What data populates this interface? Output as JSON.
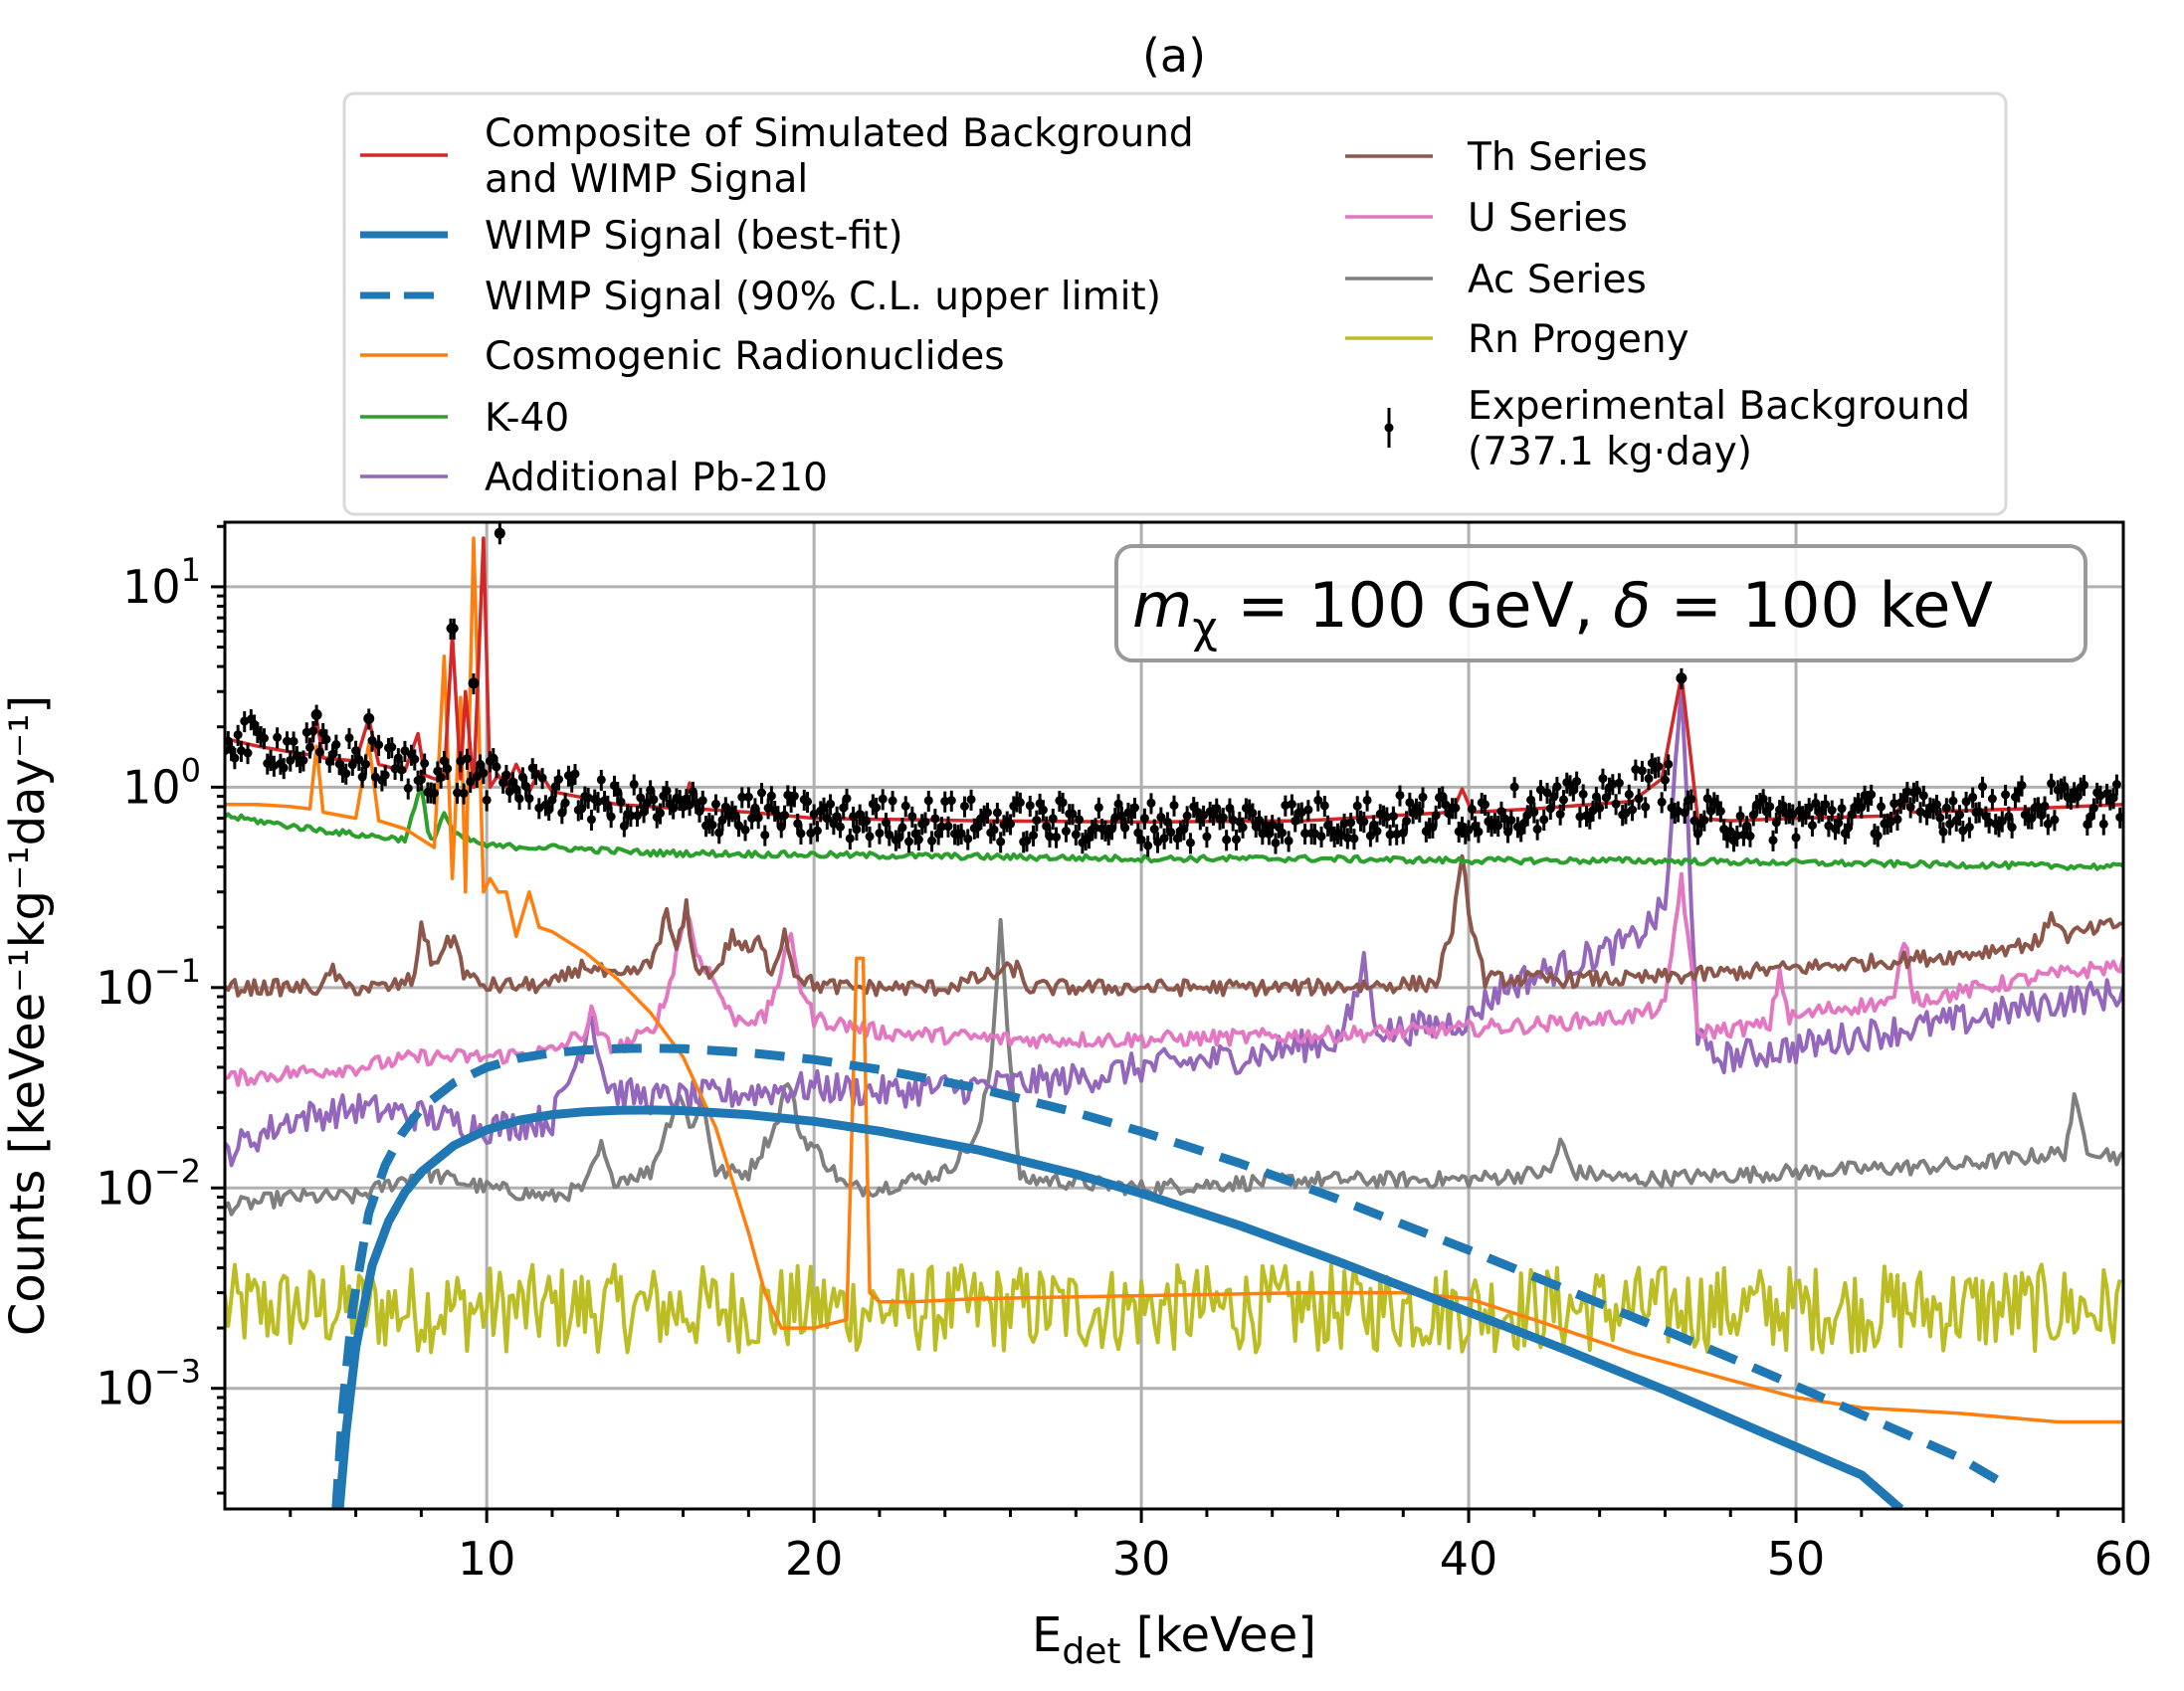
{
  "chart_data": {
    "type": "line",
    "title": "(a)",
    "xlabel": "E_det [keVee]",
    "xlabel_main": "E",
    "xlabel_sub": "det",
    "xlabel_unit": " [keVee]",
    "ylabel": "Counts [keVee⁻¹kg⁻¹day⁻¹]",
    "xscale": "linear",
    "yscale": "log",
    "xlim": [
      2,
      60
    ],
    "ylim": [
      0.00025,
      21
    ],
    "grid": true,
    "x_ticks": [
      10,
      20,
      30,
      40,
      50,
      60
    ],
    "x_tick_labels": [
      "10",
      "20",
      "30",
      "40",
      "50",
      "60"
    ],
    "y_ticks": [
      0.001,
      0.01,
      0.1,
      1,
      10
    ],
    "y_tick_labels": [
      {
        "base": "10",
        "exp": "−3"
      },
      {
        "base": "10",
        "exp": "−2"
      },
      {
        "base": "10",
        "exp": "−1"
      },
      {
        "base": "10",
        "exp": "0"
      },
      {
        "base": "10",
        "exp": "1"
      }
    ],
    "annotation": {
      "m_symbol": "m",
      "m_sub": "χ",
      "text_mid": " = 100 GeV, ",
      "delta_symbol": "δ",
      "text_end": " = 100 keV"
    },
    "legend": {
      "placement": "top",
      "columns": 2,
      "entries": [
        {
          "key": "composite",
          "label_lines": [
            "Composite of Simulated Background",
            "and WIMP Signal"
          ],
          "color": "#d62728",
          "style": "solid"
        },
        {
          "key": "wimp_best",
          "label_lines": [
            "WIMP Signal (best-fit)"
          ],
          "color": "#1f77b4",
          "style": "solid-thick"
        },
        {
          "key": "wimp_ul",
          "label_lines": [
            "WIMP Signal (90% C.L. upper limit)"
          ],
          "color": "#1f77b4",
          "style": "dashed-thick"
        },
        {
          "key": "cosmo",
          "label_lines": [
            "Cosmogenic Radionuclides"
          ],
          "color": "#ff7f0e",
          "style": "solid"
        },
        {
          "key": "k40",
          "label_lines": [
            "K-40"
          ],
          "color": "#2ca02c",
          "style": "solid"
        },
        {
          "key": "pb210",
          "label_lines": [
            "Additional Pb-210"
          ],
          "color": "#9467bd",
          "style": "solid"
        },
        {
          "key": "th",
          "label_lines": [
            "Th Series"
          ],
          "color": "#8c564b",
          "style": "solid"
        },
        {
          "key": "u",
          "label_lines": [
            "U Series"
          ],
          "color": "#e377c2",
          "style": "solid"
        },
        {
          "key": "ac",
          "label_lines": [
            "Ac Series"
          ],
          "color": "#7f7f7f",
          "style": "solid"
        },
        {
          "key": "rn",
          "label_lines": [
            "Rn Progeny"
          ],
          "color": "#bcbd22",
          "style": "solid"
        },
        {
          "key": "exp",
          "label_lines": [
            "Experimental Background",
            "(737.1 kg·day)"
          ],
          "color": "#000000",
          "style": "errorbar"
        }
      ]
    },
    "series": [
      {
        "key": "k40",
        "name": "K-40",
        "color": "#2ca02c",
        "x": [
          2,
          4,
          6,
          7.5,
          8.0,
          8.2,
          8.4,
          8.7,
          9.0,
          10,
          12,
          15,
          20,
          25,
          30,
          35,
          40,
          45,
          50,
          55,
          60
        ],
        "y": [
          0.72,
          0.64,
          0.58,
          0.55,
          1.0,
          0.6,
          0.55,
          0.75,
          0.58,
          0.51,
          0.5,
          0.47,
          0.46,
          0.45,
          0.44,
          0.44,
          0.43,
          0.43,
          0.42,
          0.41,
          0.4
        ]
      },
      {
        "key": "cosmo",
        "name": "Cosmogenic Radionuclides",
        "color": "#ff7f0e",
        "x": [
          2,
          3,
          4,
          4.6,
          4.8,
          5.0,
          6.0,
          6.4,
          6.7,
          7.5,
          8.0,
          8.4,
          8.7,
          8.95,
          9.2,
          9.35,
          9.6,
          9.9,
          10.1,
          10.35,
          10.6,
          10.9,
          11.3,
          11.6,
          12,
          13,
          14,
          15,
          16,
          17,
          18,
          18.5,
          19,
          20,
          21,
          21.3,
          21.5,
          21.7,
          22,
          23,
          25,
          30,
          35,
          38,
          40,
          42,
          45,
          48,
          50,
          52,
          55,
          58,
          60
        ],
        "y": [
          0.82,
          0.82,
          0.8,
          0.78,
          1.6,
          0.75,
          0.7,
          1.65,
          0.68,
          0.62,
          0.55,
          0.5,
          4.5,
          0.35,
          2.8,
          0.3,
          17.5,
          0.3,
          0.35,
          0.3,
          0.3,
          0.18,
          0.3,
          0.2,
          0.19,
          0.15,
          0.11,
          0.075,
          0.045,
          0.02,
          0.006,
          0.003,
          0.002,
          0.002,
          0.0022,
          0.14,
          0.14,
          0.003,
          0.0027,
          0.0027,
          0.0028,
          0.0029,
          0.003,
          0.003,
          0.0028,
          0.0022,
          0.0015,
          0.0011,
          0.0009,
          0.0008,
          0.00075,
          0.00068,
          0.00068
        ]
      },
      {
        "key": "th",
        "name": "Th Series",
        "color": "#8c564b",
        "x": [
          2,
          4,
          5,
          5.3,
          5.6,
          7,
          7.8,
          8.0,
          8.3,
          9.0,
          9.3,
          9.7,
          10,
          12,
          13,
          14,
          15,
          15.5,
          15.8,
          16.1,
          16.3,
          16.6,
          17,
          17.5,
          18,
          18.3,
          18.7,
          19.1,
          19.4,
          20,
          21,
          24,
          26.2,
          26.5,
          27,
          30,
          35,
          39,
          39.5,
          39.8,
          40.1,
          40.5,
          45,
          50,
          55,
          57.5,
          57.8,
          58.2,
          60
        ],
        "y": [
          0.1,
          0.1,
          0.1,
          0.125,
          0.1,
          0.1,
          0.11,
          0.22,
          0.13,
          0.18,
          0.12,
          0.105,
          0.102,
          0.103,
          0.13,
          0.11,
          0.13,
          0.23,
          0.15,
          0.25,
          0.14,
          0.12,
          0.12,
          0.18,
          0.15,
          0.17,
          0.12,
          0.19,
          0.12,
          0.103,
          0.1,
          0.1,
          0.125,
          0.1,
          0.1,
          0.1,
          0.1,
          0.105,
          0.2,
          0.42,
          0.2,
          0.11,
          0.11,
          0.125,
          0.145,
          0.17,
          0.24,
          0.18,
          0.21
        ]
      },
      {
        "key": "u",
        "name": "U Series",
        "color": "#e377c2",
        "x": [
          2,
          6,
          8,
          10,
          12,
          13,
          13.2,
          13.5,
          14,
          15,
          15.5,
          15.8,
          16.1,
          16.4,
          16.8,
          17.5,
          18.5,
          19.0,
          19.3,
          19.6,
          20,
          22,
          26,
          30,
          34,
          38,
          42,
          45,
          46.0,
          46.5,
          47.0,
          48,
          49.2,
          49.5,
          49.8,
          51,
          53,
          53.3,
          53.6,
          54,
          57,
          60
        ],
        "y": [
          0.035,
          0.04,
          0.045,
          0.045,
          0.048,
          0.06,
          0.075,
          0.055,
          0.05,
          0.06,
          0.09,
          0.15,
          0.25,
          0.15,
          0.12,
          0.07,
          0.07,
          0.12,
          0.18,
          0.1,
          0.07,
          0.06,
          0.055,
          0.055,
          0.057,
          0.06,
          0.065,
          0.072,
          0.08,
          0.36,
          0.06,
          0.062,
          0.065,
          0.12,
          0.07,
          0.078,
          0.085,
          0.18,
          0.09,
          0.088,
          0.11,
          0.13
        ]
      },
      {
        "key": "pb210",
        "name": "Additional Pb-210",
        "color": "#9467bd",
        "x": [
          2,
          4,
          6,
          8,
          10,
          12,
          12.8,
          13.2,
          13.6,
          14,
          15,
          16,
          18,
          20,
          22,
          25,
          28,
          30,
          33,
          36,
          36.5,
          36.8,
          37.1,
          37.5,
          39,
          40,
          41,
          43,
          45,
          46.0,
          46.5,
          47.0,
          47.3,
          48,
          50,
          52,
          55,
          58,
          60
        ],
        "y": [
          0.015,
          0.022,
          0.025,
          0.023,
          0.02,
          0.022,
          0.045,
          0.075,
          0.035,
          0.03,
          0.028,
          0.028,
          0.03,
          0.032,
          0.03,
          0.032,
          0.035,
          0.04,
          0.045,
          0.055,
          0.08,
          0.14,
          0.07,
          0.06,
          0.065,
          0.07,
          0.1,
          0.13,
          0.17,
          0.25,
          3.0,
          0.06,
          0.045,
          0.045,
          0.05,
          0.058,
          0.068,
          0.085,
          0.095
        ]
      },
      {
        "key": "ac",
        "name": "Ac Series",
        "color": "#7f7f7f",
        "x": [
          2,
          4,
          6,
          8,
          10,
          12,
          13,
          13.5,
          13.8,
          15,
          15.5,
          15.9,
          16.2,
          16.6,
          17,
          18,
          18.8,
          19.2,
          19.6,
          20,
          21,
          22,
          23,
          24,
          25,
          25.4,
          25.7,
          26.0,
          26.3,
          27,
          30,
          35,
          40,
          42.5,
          42.8,
          43.2,
          45,
          50,
          55,
          58.2,
          58.5,
          58.9,
          60
        ],
        "y": [
          0.008,
          0.009,
          0.009,
          0.012,
          0.01,
          0.009,
          0.01,
          0.016,
          0.011,
          0.012,
          0.02,
          0.03,
          0.02,
          0.027,
          0.012,
          0.012,
          0.02,
          0.035,
          0.018,
          0.016,
          0.01,
          0.01,
          0.011,
          0.012,
          0.018,
          0.04,
          0.22,
          0.04,
          0.011,
          0.011,
          0.01,
          0.011,
          0.011,
          0.012,
          0.017,
          0.012,
          0.011,
          0.012,
          0.013,
          0.015,
          0.027,
          0.016,
          0.014
        ]
      },
      {
        "key": "rn",
        "name": "Rn Progeny",
        "color": "#bcbd22",
        "baseline": 0.0025,
        "noise_decades": 0.22,
        "x_range": [
          2,
          60
        ]
      },
      {
        "key": "wimp_best",
        "name": "WIMP Signal (best-fit)",
        "color": "#1f77b4",
        "x": [
          5.5,
          5.7,
          6.0,
          6.5,
          7.0,
          7.5,
          8.0,
          9.0,
          10,
          11,
          12,
          13,
          14,
          15,
          16,
          18,
          20,
          22,
          25,
          28,
          30,
          33,
          36,
          40,
          43,
          46,
          49,
          52,
          53.2
        ],
        "y": [
          0.00025,
          0.0006,
          0.0016,
          0.0041,
          0.0068,
          0.0095,
          0.012,
          0.0163,
          0.0195,
          0.0218,
          0.0232,
          0.024,
          0.0244,
          0.0245,
          0.0243,
          0.0232,
          0.0215,
          0.0192,
          0.0155,
          0.0117,
          0.0094,
          0.0065,
          0.0043,
          0.0024,
          0.00155,
          0.00098,
          0.0006,
          0.00037,
          0.00025
        ]
      },
      {
        "key": "wimp_ul",
        "name": "WIMP Signal (90% C.L. upper limit)",
        "color": "#1f77b4",
        "x": [
          5.4,
          5.6,
          5.9,
          6.4,
          6.9,
          7.4,
          8.0,
          9.0,
          10,
          11,
          12,
          13,
          14,
          15,
          16,
          18,
          20,
          22,
          25,
          28,
          30,
          33,
          36,
          40,
          43,
          46,
          49,
          52,
          55,
          56.4
        ],
        "y": [
          0.00025,
          0.0008,
          0.0025,
          0.0075,
          0.013,
          0.0185,
          0.025,
          0.0335,
          0.04,
          0.0445,
          0.0472,
          0.0488,
          0.0496,
          0.0498,
          0.0495,
          0.0473,
          0.0437,
          0.039,
          0.0315,
          0.0238,
          0.0191,
          0.0133,
          0.0088,
          0.0049,
          0.0031,
          0.00195,
          0.00121,
          0.00074,
          0.00045,
          0.00033
        ]
      },
      {
        "key": "composite",
        "name": "Composite of Simulated Background and WIMP Signal",
        "color": "#d62728",
        "x": [
          2,
          3,
          4,
          4.6,
          4.8,
          5.0,
          6.0,
          6.4,
          6.7,
          7.5,
          7.9,
          8.1,
          8.4,
          8.7,
          8.95,
          9.2,
          9.35,
          9.6,
          9.9,
          10.1,
          10.35,
          10.6,
          10.9,
          11.3,
          11.6,
          12,
          14,
          16,
          16.2,
          16.4,
          18,
          20,
          25,
          30,
          35,
          39.5,
          39.8,
          40.1,
          42,
          45,
          45.9,
          46.5,
          47.0,
          48,
          50,
          53,
          53.3,
          53.6,
          57,
          60
        ],
        "y": [
          1.75,
          1.6,
          1.5,
          1.45,
          2.2,
          1.4,
          1.35,
          2.2,
          1.3,
          1.2,
          1.85,
          1.15,
          1.1,
          1.1,
          5.8,
          1.1,
          3.0,
          1.0,
          17.5,
          1.0,
          1.15,
          1.0,
          1.3,
          0.95,
          1.2,
          0.95,
          0.82,
          0.78,
          1.05,
          0.78,
          0.75,
          0.7,
          0.68,
          0.67,
          0.68,
          0.75,
          0.98,
          0.75,
          0.78,
          0.85,
          1.1,
          3.6,
          0.7,
          0.68,
          0.7,
          0.72,
          0.85,
          0.75,
          0.78,
          0.82
        ]
      },
      {
        "key": "exp",
        "name": "Experimental Background (737.1 kg·day)",
        "color": "#000000",
        "type": "errorbar",
        "peaks": [
          {
            "x": 4.8,
            "y": 2.3
          },
          {
            "x": 6.4,
            "y": 2.2
          },
          {
            "x": 8.95,
            "y": 6.2
          },
          {
            "x": 9.6,
            "y": 3.3
          },
          {
            "x": 10.4,
            "y": 18.5
          },
          {
            "x": 46.5,
            "y": 3.5
          }
        ],
        "baseline_x": [
          2,
          4,
          6,
          8,
          10,
          12,
          14,
          16,
          20,
          25,
          30,
          35,
          40,
          44,
          46,
          47,
          50,
          55,
          60
        ],
        "baseline_y": [
          1.8,
          1.55,
          1.4,
          1.2,
          1.1,
          0.95,
          0.82,
          0.78,
          0.7,
          0.68,
          0.66,
          0.68,
          0.74,
          0.85,
          1.1,
          0.68,
          0.7,
          0.78,
          0.85
        ],
        "noise_decades": 0.07
      }
    ]
  }
}
